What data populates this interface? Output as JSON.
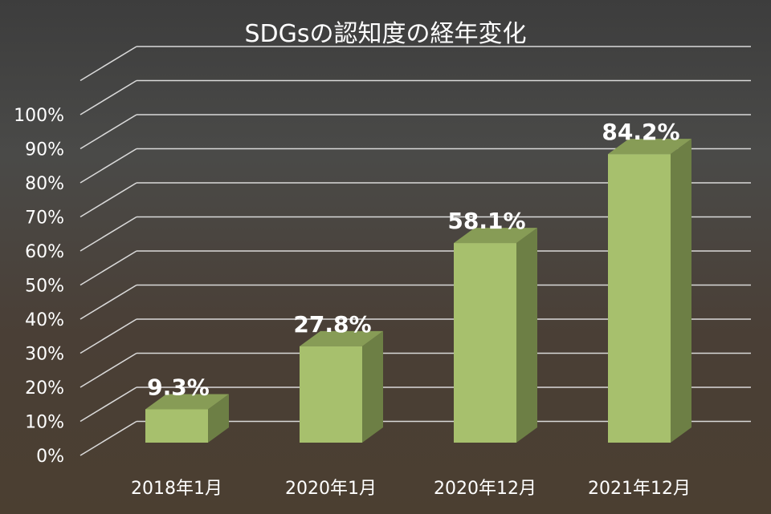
{
  "chart_data": {
    "type": "bar",
    "title": "SDGsの認知度の経年変化",
    "categories": [
      "2018年1月",
      "2020年1月",
      "2020年12月",
      "2021年12月"
    ],
    "values": [
      9.3,
      27.8,
      58.1,
      84.2
    ],
    "value_labels": [
      "9.3%",
      "27.8%",
      "58.1%",
      "84.2%"
    ],
    "y_ticks": [
      "0%",
      "10%",
      "20%",
      "30%",
      "40%",
      "50%",
      "60%",
      "70%",
      "80%",
      "90%",
      "100%"
    ],
    "ylim": [
      0,
      100
    ],
    "xlabel": "",
    "ylabel": "",
    "grid": true,
    "legend": "none",
    "colors": {
      "bar_front": "#a7c06d",
      "bar_top": "#879c56",
      "bar_side": "#6d7f45",
      "grid": "#d9d9d9",
      "text": "#ffffff"
    }
  }
}
